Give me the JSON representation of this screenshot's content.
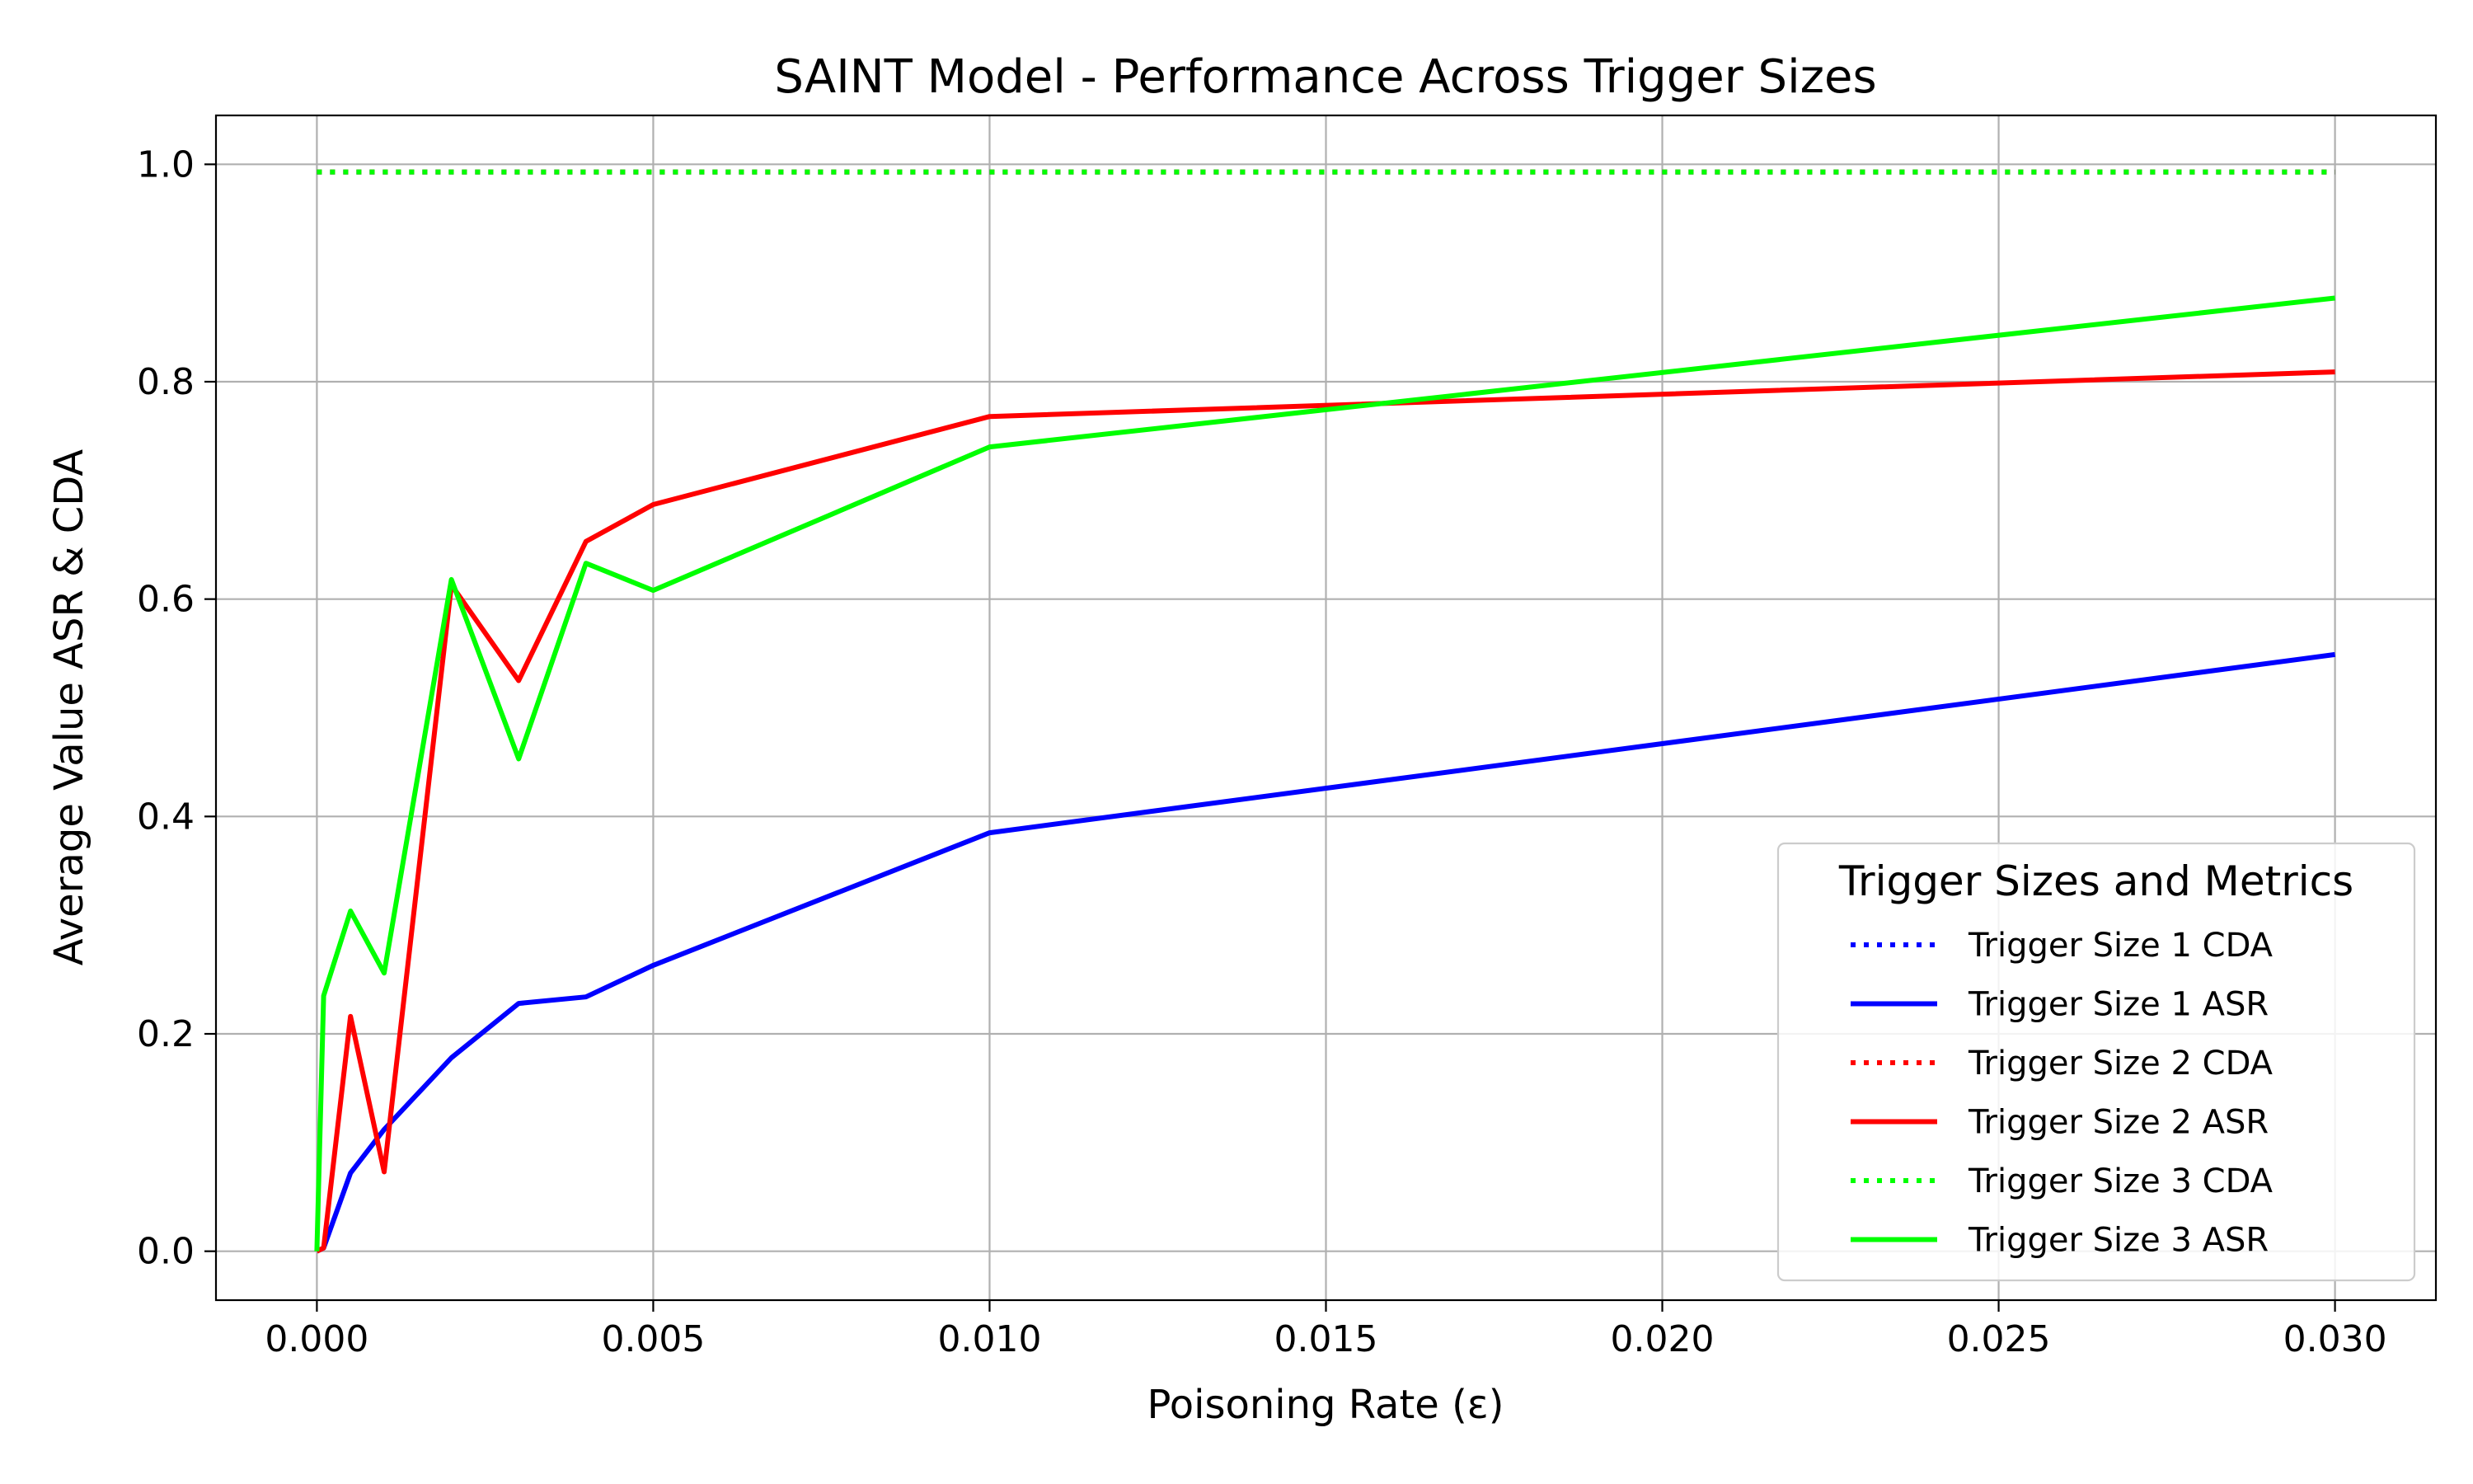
{
  "chart_data": {
    "type": "line",
    "title": "SAINT Model - Performance Across Trigger Sizes",
    "xlabel": "Poisoning Rate (ε)",
    "ylabel": "Average Value ASR & CDA",
    "xlim": [
      -0.0015,
      0.0315
    ],
    "ylim": [
      -0.045,
      1.045
    ],
    "x_ticks": [
      0.0,
      0.005,
      0.01,
      0.015,
      0.02,
      0.025,
      0.03
    ],
    "x_tick_labels": [
      "0.000",
      "0.005",
      "0.010",
      "0.015",
      "0.020",
      "0.025",
      "0.030"
    ],
    "y_ticks": [
      0.0,
      0.2,
      0.4,
      0.6,
      0.8,
      1.0
    ],
    "y_tick_labels": [
      "0.0",
      "0.2",
      "0.4",
      "0.6",
      "0.8",
      "1.0"
    ],
    "grid": true,
    "legend": {
      "title": "Trigger Sizes and Metrics",
      "position": "lower-right"
    },
    "x": [
      0.0,
      0.0001,
      0.0005,
      0.001,
      0.002,
      0.003,
      0.004,
      0.005,
      0.01,
      0.03
    ],
    "series": [
      {
        "name": "Trigger Size 1 CDA",
        "color": "#0000ff",
        "style": "dotted",
        "values": [
          0.993,
          0.993,
          0.993,
          0.993,
          0.993,
          0.993,
          0.993,
          0.993,
          0.993,
          0.993
        ]
      },
      {
        "name": "Trigger Size 1 ASR",
        "color": "#0000ff",
        "style": "solid",
        "values": [
          0.0,
          0.003,
          0.072,
          0.112,
          0.178,
          0.228,
          0.234,
          0.263,
          0.385,
          0.549
        ]
      },
      {
        "name": "Trigger Size 2 CDA",
        "color": "#ff0000",
        "style": "dotted",
        "values": [
          0.993,
          0.993,
          0.993,
          0.993,
          0.993,
          0.993,
          0.993,
          0.993,
          0.993,
          0.993
        ]
      },
      {
        "name": "Trigger Size 2 ASR",
        "color": "#ff0000",
        "style": "solid",
        "values": [
          0.0,
          0.003,
          0.216,
          0.073,
          0.613,
          0.525,
          0.653,
          0.687,
          0.768,
          0.809
        ]
      },
      {
        "name": "Trigger Size 3 CDA",
        "color": "#00ff00",
        "style": "dotted",
        "values": [
          0.993,
          0.993,
          0.993,
          0.993,
          0.993,
          0.993,
          0.993,
          0.993,
          0.993,
          0.993
        ]
      },
      {
        "name": "Trigger Size 3 ASR",
        "color": "#00ff00",
        "style": "solid",
        "values": [
          0.0,
          0.235,
          0.313,
          0.256,
          0.618,
          0.453,
          0.633,
          0.608,
          0.74,
          0.877
        ]
      }
    ]
  }
}
